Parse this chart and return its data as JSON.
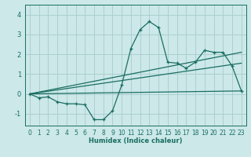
{
  "xlabel": "Humidex (Indice chaleur)",
  "bg_color": "#cce8e8",
  "grid_color": "#a8cccc",
  "line_color": "#1a6e62",
  "xlim": [
    -0.5,
    23.5
  ],
  "ylim": [
    -1.6,
    4.5
  ],
  "xticks": [
    0,
    1,
    2,
    3,
    4,
    5,
    6,
    7,
    8,
    9,
    10,
    11,
    12,
    13,
    14,
    15,
    16,
    17,
    18,
    19,
    20,
    21,
    22,
    23
  ],
  "yticks": [
    -1,
    0,
    1,
    2,
    3,
    4
  ],
  "line1_x": [
    0,
    1,
    2,
    3,
    4,
    5,
    6,
    7,
    8,
    9,
    10,
    11,
    12,
    13,
    14,
    15,
    16,
    17,
    18,
    19,
    20,
    21,
    22,
    23
  ],
  "line1_y": [
    0.0,
    -0.2,
    -0.15,
    -0.4,
    -0.5,
    -0.5,
    -0.55,
    -1.3,
    -1.3,
    -0.85,
    0.45,
    2.3,
    3.25,
    3.65,
    3.35,
    1.6,
    1.55,
    1.3,
    1.6,
    2.2,
    2.1,
    2.1,
    1.4,
    0.15
  ],
  "line2_x": [
    0,
    23
  ],
  "line2_y": [
    0.0,
    2.1
  ],
  "line3_x": [
    0,
    23
  ],
  "line3_y": [
    0.0,
    1.55
  ],
  "line4_x": [
    0,
    23
  ],
  "line4_y": [
    0.0,
    0.15
  ],
  "xlabel_fontsize": 6,
  "tick_labelsize": 5.5
}
